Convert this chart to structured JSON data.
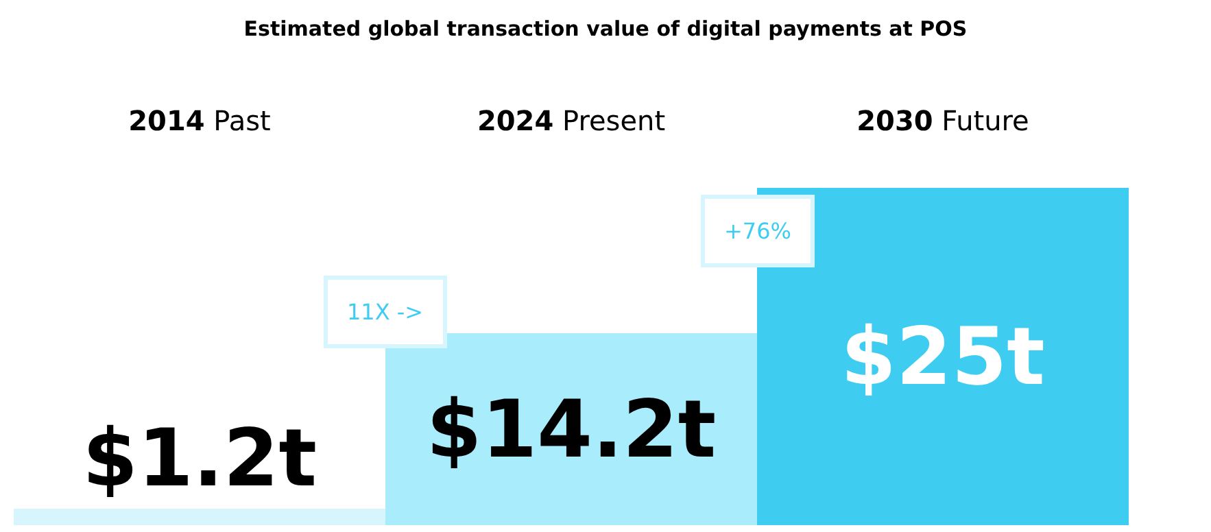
{
  "chart_data": {
    "type": "bar",
    "title": "Estimated global transaction value of digital payments at POS",
    "categories": [
      "2014 Past",
      "2024 Present",
      "2030 Future"
    ],
    "values": [
      1.2,
      14.2,
      25
    ],
    "colors": [
      "#d6f5fc",
      "#a9ecfb",
      "#3ecdf0"
    ],
    "value_labels": [
      "$1.2t",
      "$14.2t",
      "$25t"
    ],
    "annotations": [
      "11X ->",
      "+76%"
    ],
    "legend": false
  }
}
